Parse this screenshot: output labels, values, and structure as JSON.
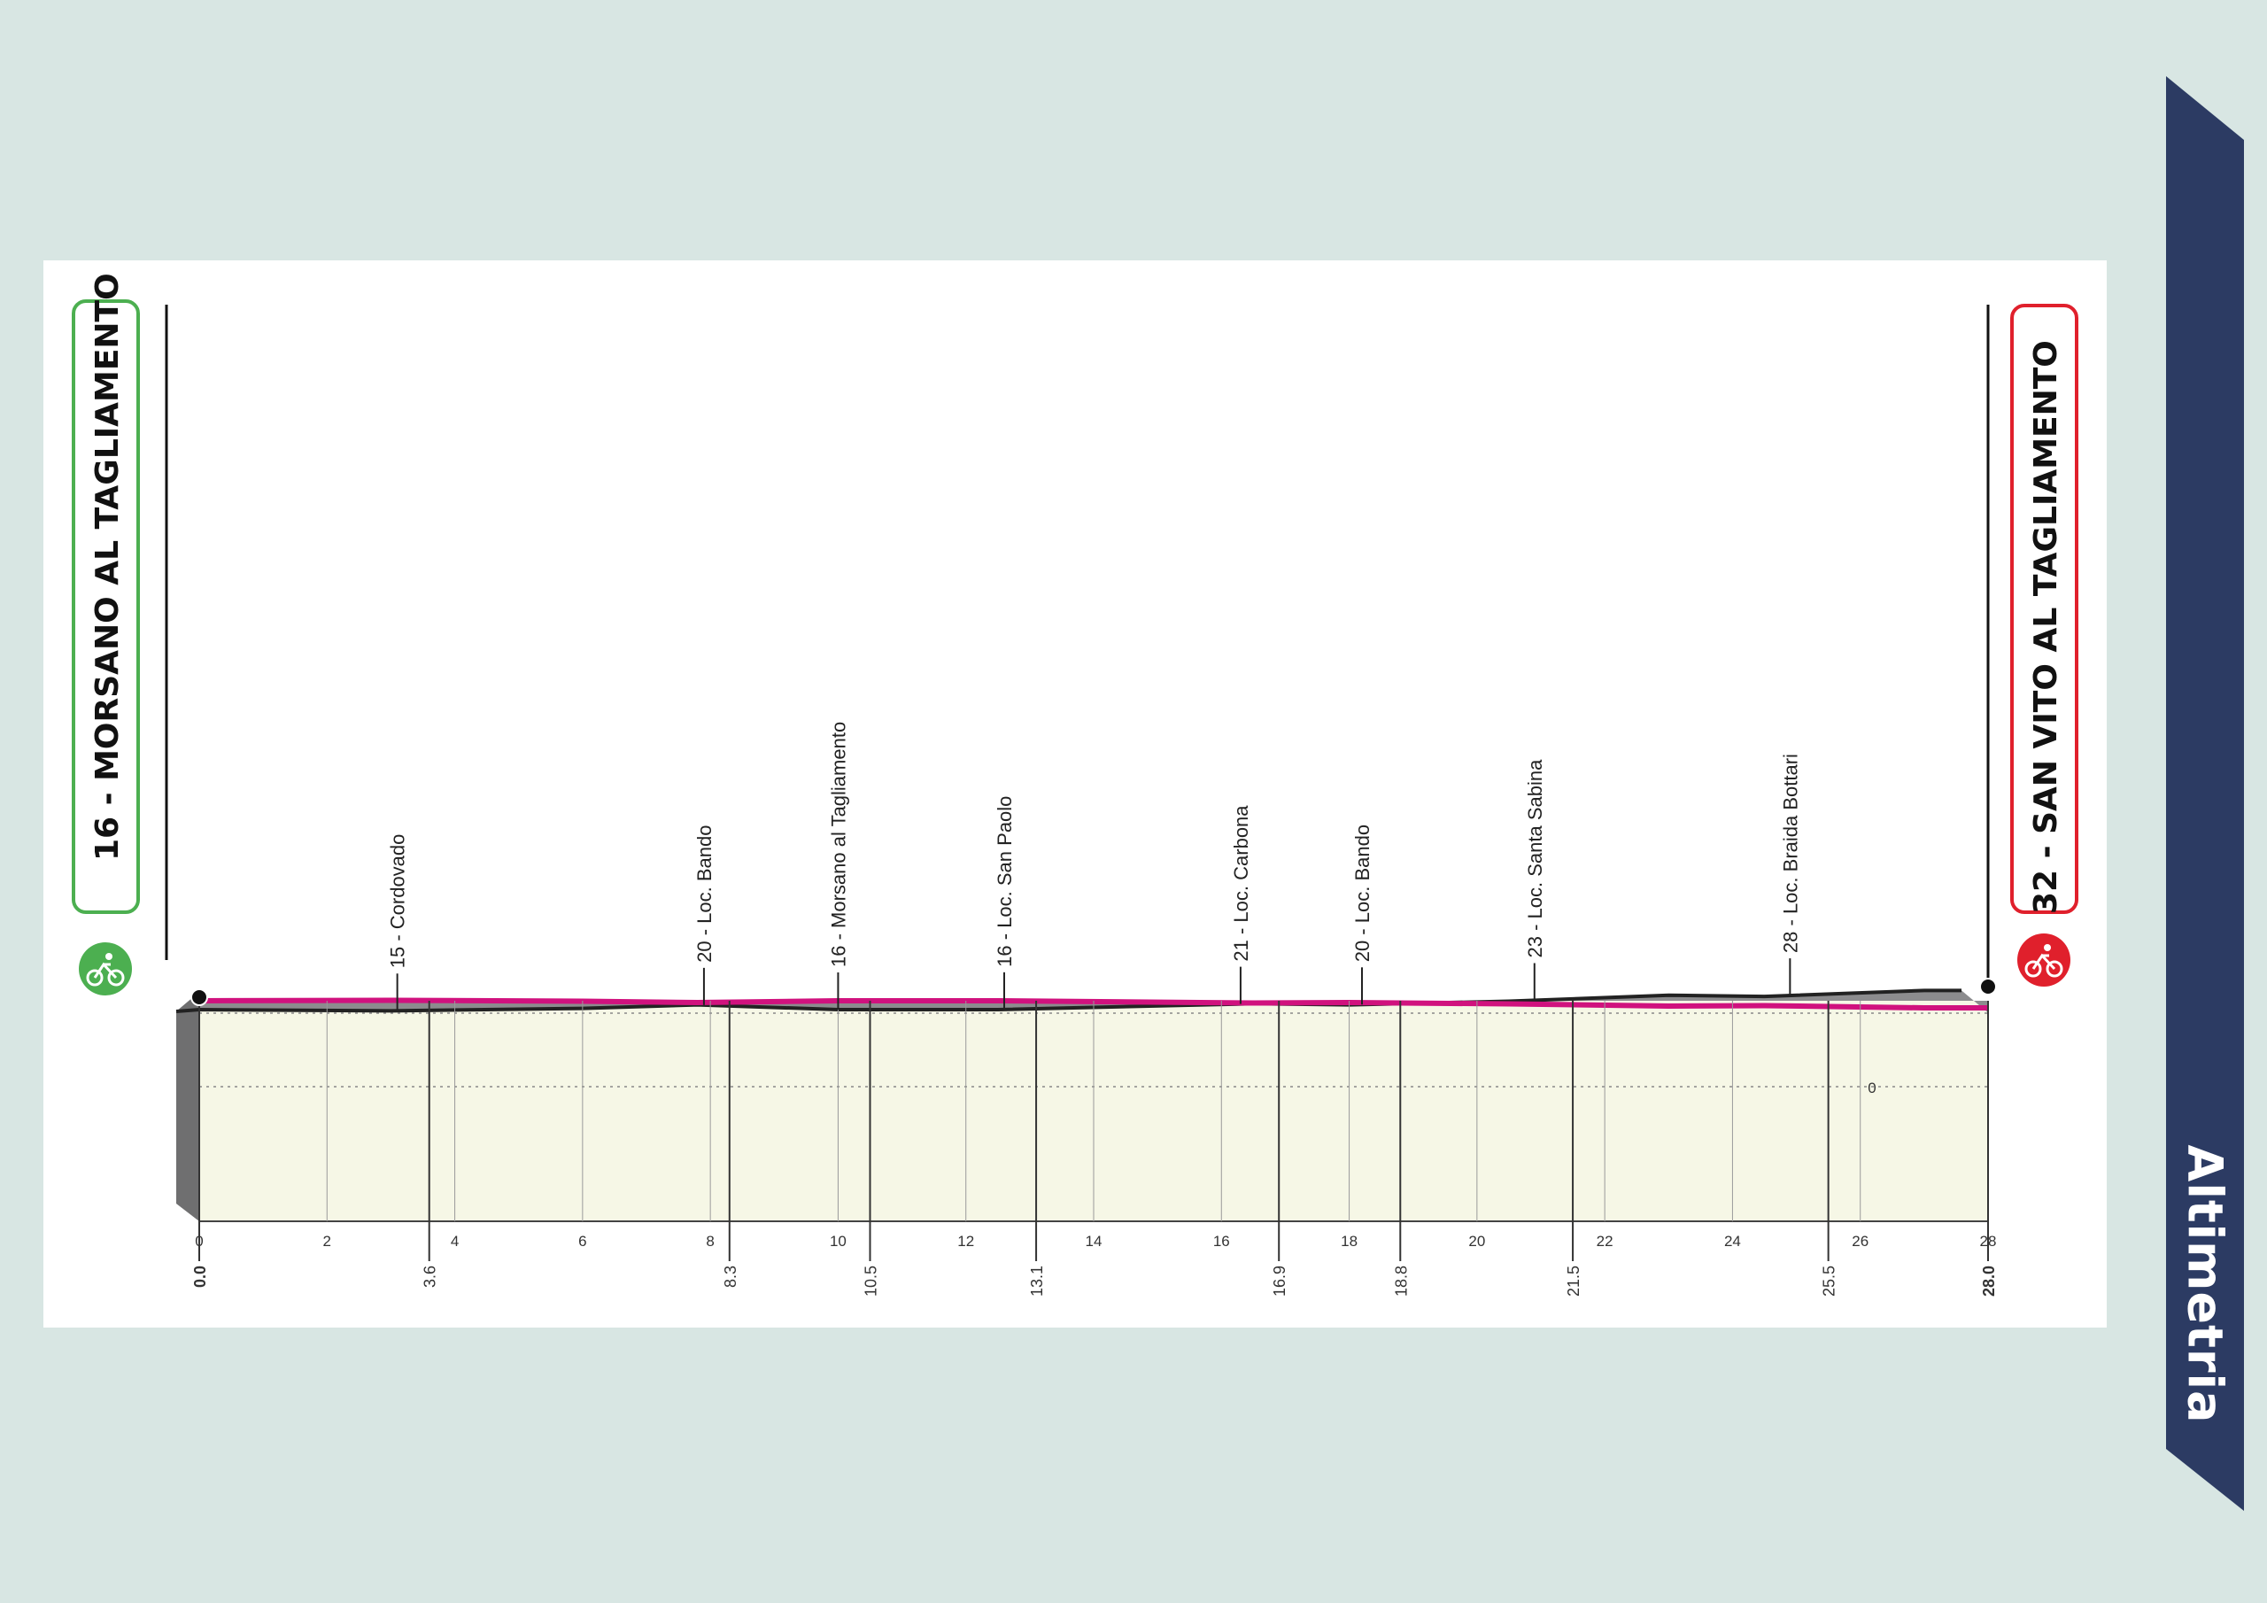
{
  "ribbon": {
    "label": "Altimetria",
    "color": "#2c3b63"
  },
  "start": {
    "altitude": "16",
    "name": "MORSANO AL TAGLIAMENTO",
    "label": "16 - MORSANO AL TAGLIAMENTO",
    "color": "#4caf50",
    "icon": "bicycle-icon"
  },
  "finish": {
    "altitude": "32",
    "name": "SAN VITO AL TAGLIAMENTO",
    "label": "32 - SAN VITO AL TAGLIAMENTO",
    "color": "#e0202c",
    "icon": "bicycle-icon"
  },
  "colors": {
    "route": "#d0127e",
    "profile": "#8c8c8e",
    "plain": "#f6f7e6",
    "background": "#d8e6e3"
  },
  "chart_data": {
    "type": "area",
    "x_range": [
      0,
      28
    ],
    "x_ticks": [
      "0",
      "2",
      "4",
      "6",
      "8",
      "10",
      "12",
      "14",
      "16",
      "18",
      "20",
      "22",
      "24",
      "26",
      "28"
    ],
    "intermediate_km": [
      "0.0",
      "3.6",
      "8.3",
      "10.5",
      "13.1",
      "16.9",
      "18.8",
      "21.5",
      "25.5",
      "28.0"
    ],
    "altitude_marker": "0",
    "profile": {
      "x": [
        0,
        3,
        6,
        7.8,
        10,
        12.5,
        16.5,
        18,
        20.5,
        23,
        24.5,
        27
      ],
      "y": [
        16,
        15,
        17,
        20,
        16,
        16,
        21,
        20,
        23,
        28,
        27,
        32
      ]
    },
    "waypoints": [
      {
        "km": 3.1,
        "label": "15 - Cordovado"
      },
      {
        "km": 7.9,
        "label": "20 - Loc. Bando"
      },
      {
        "km": 10.0,
        "label": "16 - Morsano al Tagliamento"
      },
      {
        "km": 12.6,
        "label": "16 - Loc. San Paolo"
      },
      {
        "km": 16.3,
        "label": "21 - Loc. Carbona"
      },
      {
        "km": 18.2,
        "label": "20 - Loc. Bando"
      },
      {
        "km": 20.9,
        "label": "23 - Loc. Santa Sabina"
      },
      {
        "km": 24.9,
        "label": "28 - Loc. Braida Bottari"
      }
    ]
  }
}
